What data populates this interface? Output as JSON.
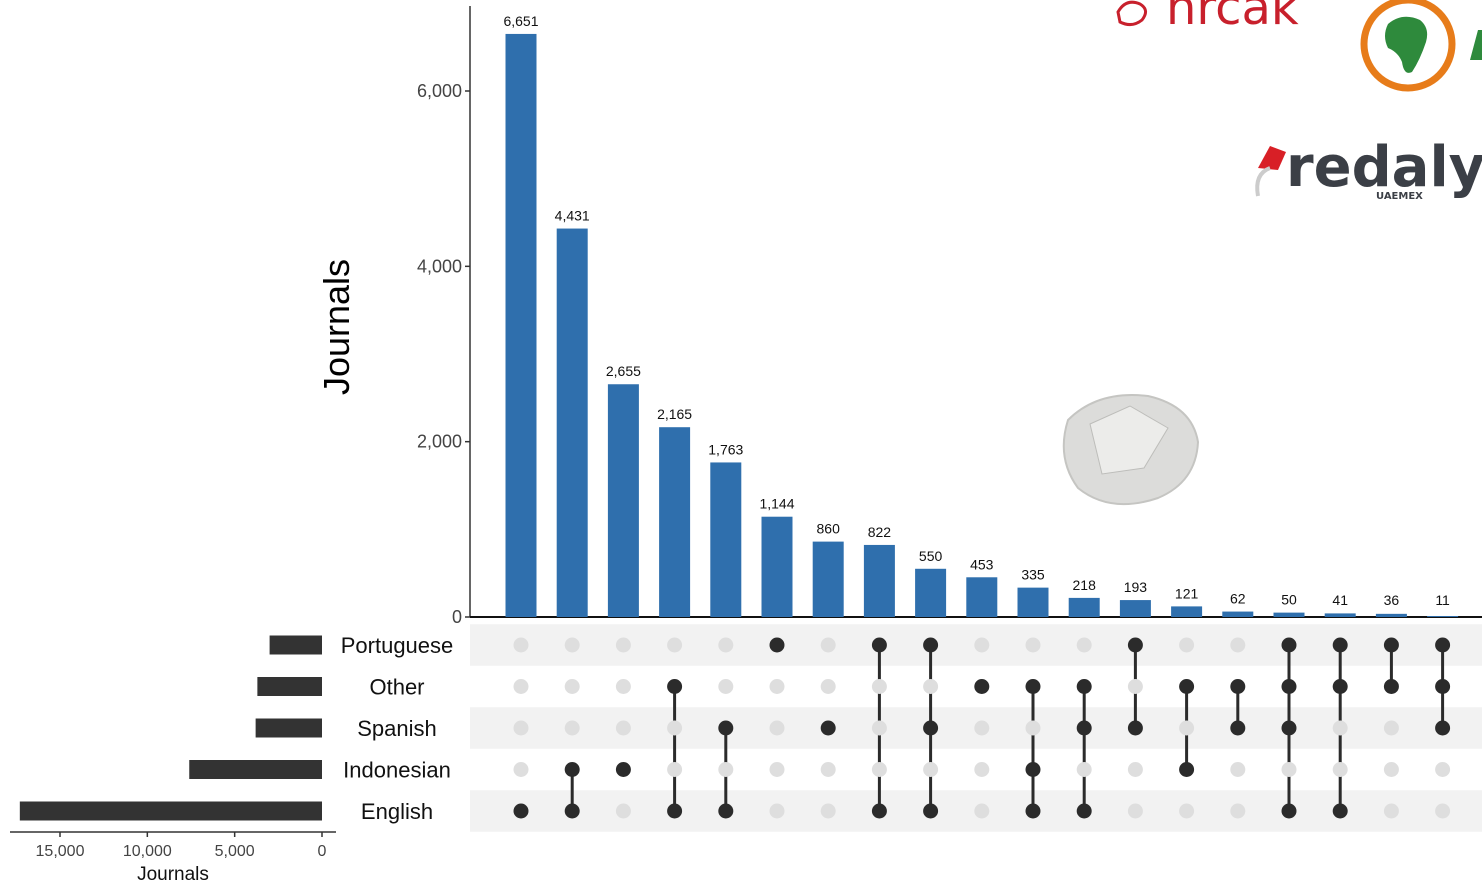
{
  "chart_data": {
    "type": "bar",
    "ylabel": "Journals",
    "yticks": [
      "0",
      "2,000",
      "4,000",
      "6,000"
    ],
    "ytick_values": [
      0,
      2000,
      4000,
      6000
    ],
    "ylim": [
      0,
      7000
    ],
    "bar_color": "#2f6fad",
    "dot_active_color": "#2b2b2b",
    "dot_inactive_color": "#dedede",
    "sets": [
      "Portuguese",
      "Other",
      "Spanish",
      "Indonesian",
      "English"
    ],
    "set_sizes": [
      3000,
      3700,
      3800,
      7600,
      17300
    ],
    "set_size_xlabel": "Journals",
    "set_size_ticks": [
      "15,000",
      "10,000",
      "5,000",
      "0"
    ],
    "set_size_tick_values": [
      15000,
      10000,
      5000,
      0
    ],
    "intersections": [
      {
        "value": 6651,
        "label": "6,651",
        "members": [
          "English"
        ]
      },
      {
        "value": 4431,
        "label": "4,431",
        "members": [
          "Indonesian",
          "English"
        ]
      },
      {
        "value": 2655,
        "label": "2,655",
        "members": [
          "Indonesian"
        ]
      },
      {
        "value": 2165,
        "label": "2,165",
        "members": [
          "Other",
          "English"
        ]
      },
      {
        "value": 1763,
        "label": "1,763",
        "members": [
          "Spanish",
          "English"
        ]
      },
      {
        "value": 1144,
        "label": "1,144",
        "members": [
          "Portuguese"
        ]
      },
      {
        "value": 860,
        "label": "860",
        "members": [
          "Spanish"
        ]
      },
      {
        "value": 822,
        "label": "822",
        "members": [
          "Portuguese",
          "English"
        ]
      },
      {
        "value": 550,
        "label": "550",
        "members": [
          "Portuguese",
          "Spanish",
          "English"
        ]
      },
      {
        "value": 453,
        "label": "453",
        "members": [
          "Other"
        ]
      },
      {
        "value": 335,
        "label": "335",
        "members": [
          "Other",
          "Indonesian",
          "English"
        ]
      },
      {
        "value": 218,
        "label": "218",
        "members": [
          "Other",
          "Spanish",
          "English"
        ]
      },
      {
        "value": 193,
        "label": "193",
        "members": [
          "Portuguese",
          "Spanish"
        ]
      },
      {
        "value": 121,
        "label": "121",
        "members": [
          "Other",
          "Indonesian"
        ]
      },
      {
        "value": 62,
        "label": "62",
        "members": [
          "Other",
          "Spanish"
        ]
      },
      {
        "value": 50,
        "label": "50",
        "members": [
          "Portuguese",
          "Other",
          "Spanish",
          "English"
        ]
      },
      {
        "value": 41,
        "label": "41",
        "members": [
          "Portuguese",
          "Other",
          "English"
        ]
      },
      {
        "value": 36,
        "label": "36",
        "members": [
          "Portuguese",
          "Other"
        ]
      },
      {
        "value": 11,
        "label": "11",
        "members": [
          "Portuguese",
          "Other",
          "Spanish"
        ]
      }
    ]
  },
  "logos": {
    "nrcak": "nrcak",
    "redalyc": "redalyc",
    "redalyc_sub": "UAEMEX"
  }
}
